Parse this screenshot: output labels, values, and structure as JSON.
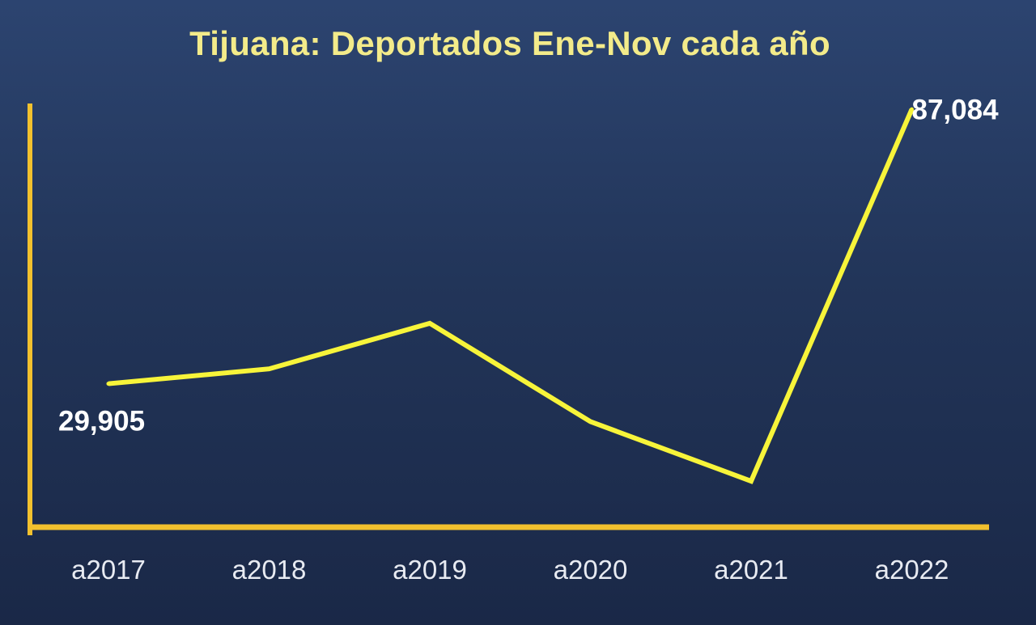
{
  "chart_data": {
    "type": "line",
    "title": "Tijuana: Deportados Ene-Nov cada año",
    "categories": [
      "a2017",
      "a2018",
      "a2019",
      "a2020",
      "a2021",
      "a2022"
    ],
    "series": [
      {
        "values": [
          29905,
          33000,
          42500,
          22000,
          9600,
          87084
        ]
      }
    ],
    "data_labels": [
      {
        "index": 0,
        "text": "29,905"
      },
      {
        "index": 5,
        "text": "87,084"
      }
    ],
    "ylim": [
      0,
      90000
    ],
    "grid": false,
    "legend": false,
    "xlabel": "",
    "ylabel": ""
  },
  "colors": {
    "line": "#f7f43a",
    "axis": "#f2c12e",
    "title": "#f3eb8a",
    "background_top": "#2c4470",
    "background_bottom": "#1a2847"
  }
}
